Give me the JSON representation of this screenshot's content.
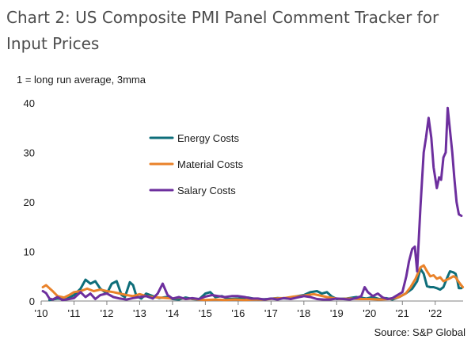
{
  "page": {
    "title": "Chart 2: US Composite PMI Panel Comment Tracker for\nInput Prices",
    "ylabel": "1 = long run average, 3mma",
    "source": "Source: S&P Global"
  },
  "colors": {
    "energy": "#0e6e7a",
    "material": "#e9822a",
    "salary": "#6d2f9e",
    "axis": "#808080"
  },
  "chart_data": {
    "type": "line",
    "title": "Chart 2: US Composite PMI Panel Comment Tracker for Input Prices",
    "xlabel": "",
    "ylabel": "1 = long run average, 3mma",
    "xlim": [
      2010.0,
      2022.85
    ],
    "ylim": [
      0,
      40
    ],
    "yticks": [
      0,
      10,
      20,
      30,
      40
    ],
    "xticks": [
      {
        "value": 2010,
        "label": "'10"
      },
      {
        "value": 2011,
        "label": "'11"
      },
      {
        "value": 2012,
        "label": "'12"
      },
      {
        "value": 2013,
        "label": "'13"
      },
      {
        "value": 2014,
        "label": "'14"
      },
      {
        "value": 2015,
        "label": "'15"
      },
      {
        "value": 2016,
        "label": "'16"
      },
      {
        "value": 2017,
        "label": "'17"
      },
      {
        "value": 2018,
        "label": "'18"
      },
      {
        "value": 2019,
        "label": "'19"
      },
      {
        "value": 2020,
        "label": "'20"
      },
      {
        "value": 2021,
        "label": "'21"
      },
      {
        "value": 2022,
        "label": "'22"
      }
    ],
    "legend_position": "upper-left",
    "series": [
      {
        "key": "energy",
        "name": "Energy Costs",
        "points": [
          [
            2010.25,
            0.2
          ],
          [
            2010.5,
            0.5
          ],
          [
            2010.75,
            0.3
          ],
          [
            2011.0,
            1.2
          ],
          [
            2011.2,
            2.5
          ],
          [
            2011.35,
            4.3
          ],
          [
            2011.5,
            3.5
          ],
          [
            2011.65,
            4.0
          ],
          [
            2011.8,
            2.5
          ],
          [
            2012.0,
            1.5
          ],
          [
            2012.15,
            3.5
          ],
          [
            2012.3,
            4.0
          ],
          [
            2012.45,
            1.2
          ],
          [
            2012.55,
            0.8
          ],
          [
            2012.7,
            3.8
          ],
          [
            2012.8,
            3.2
          ],
          [
            2012.9,
            1.0
          ],
          [
            2013.05,
            0.5
          ],
          [
            2013.2,
            1.5
          ],
          [
            2013.4,
            1.0
          ],
          [
            2013.6,
            0.6
          ],
          [
            2013.8,
            0.8
          ],
          [
            2014.0,
            0.4
          ],
          [
            2014.2,
            0.3
          ],
          [
            2014.4,
            0.7
          ],
          [
            2014.6,
            0.4
          ],
          [
            2014.8,
            0.3
          ],
          [
            2015.0,
            1.5
          ],
          [
            2015.15,
            1.8
          ],
          [
            2015.3,
            0.8
          ],
          [
            2015.5,
            1.0
          ],
          [
            2015.7,
            0.4
          ],
          [
            2016.0,
            0.5
          ],
          [
            2016.3,
            0.7
          ],
          [
            2016.6,
            0.3
          ],
          [
            2016.9,
            0.4
          ],
          [
            2017.2,
            0.6
          ],
          [
            2017.5,
            0.5
          ],
          [
            2017.8,
            1.0
          ],
          [
            2018.0,
            1.2
          ],
          [
            2018.2,
            1.8
          ],
          [
            2018.4,
            2.0
          ],
          [
            2018.55,
            1.5
          ],
          [
            2018.7,
            1.8
          ],
          [
            2018.85,
            0.9
          ],
          [
            2019.0,
            0.4
          ],
          [
            2019.3,
            0.5
          ],
          [
            2019.6,
            0.8
          ],
          [
            2019.9,
            0.5
          ],
          [
            2020.1,
            0.8
          ],
          [
            2020.3,
            0.4
          ],
          [
            2020.5,
            0.6
          ],
          [
            2020.7,
            0.3
          ],
          [
            2020.9,
            0.8
          ],
          [
            2021.1,
            1.5
          ],
          [
            2021.3,
            2.5
          ],
          [
            2021.45,
            4.0
          ],
          [
            2021.55,
            6.5
          ],
          [
            2021.65,
            5.5
          ],
          [
            2021.75,
            3.0
          ],
          [
            2021.85,
            2.8
          ],
          [
            2021.95,
            2.8
          ],
          [
            2022.05,
            2.6
          ],
          [
            2022.15,
            2.3
          ],
          [
            2022.25,
            2.8
          ],
          [
            2022.35,
            4.5
          ],
          [
            2022.45,
            6.0
          ],
          [
            2022.55,
            5.8
          ],
          [
            2022.62,
            5.5
          ],
          [
            2022.68,
            4.0
          ],
          [
            2022.72,
            2.6
          ],
          [
            2022.8,
            2.6
          ]
        ]
      },
      {
        "key": "material",
        "name": "Material Costs",
        "points": [
          [
            2010.05,
            2.8
          ],
          [
            2010.15,
            3.2
          ],
          [
            2010.25,
            2.6
          ],
          [
            2010.35,
            2.0
          ],
          [
            2010.5,
            1.0
          ],
          [
            2010.7,
            0.7
          ],
          [
            2010.85,
            1.2
          ],
          [
            2011.0,
            1.8
          ],
          [
            2011.2,
            2.0
          ],
          [
            2011.4,
            2.5
          ],
          [
            2011.6,
            2.0
          ],
          [
            2011.8,
            2.3
          ],
          [
            2012.0,
            2.0
          ],
          [
            2012.2,
            1.8
          ],
          [
            2012.4,
            1.5
          ],
          [
            2012.6,
            1.2
          ],
          [
            2012.8,
            1.0
          ],
          [
            2013.0,
            1.4
          ],
          [
            2013.2,
            1.0
          ],
          [
            2013.4,
            0.8
          ],
          [
            2013.6,
            0.7
          ],
          [
            2013.8,
            0.6
          ],
          [
            2014.0,
            0.5
          ],
          [
            2014.2,
            0.7
          ],
          [
            2014.4,
            0.4
          ],
          [
            2014.6,
            0.5
          ],
          [
            2014.8,
            0.3
          ],
          [
            2015.0,
            0.2
          ],
          [
            2015.3,
            0.3
          ],
          [
            2015.6,
            0.2
          ],
          [
            2015.9,
            0.3
          ],
          [
            2016.2,
            0.2
          ],
          [
            2016.5,
            0.3
          ],
          [
            2016.8,
            0.3
          ],
          [
            2017.1,
            0.5
          ],
          [
            2017.4,
            0.6
          ],
          [
            2017.7,
            0.9
          ],
          [
            2017.9,
            1.0
          ],
          [
            2018.1,
            1.2
          ],
          [
            2018.3,
            1.4
          ],
          [
            2018.5,
            1.1
          ],
          [
            2018.7,
            0.8
          ],
          [
            2018.9,
            0.6
          ],
          [
            2019.1,
            0.4
          ],
          [
            2019.4,
            0.5
          ],
          [
            2019.7,
            0.4
          ],
          [
            2020.0,
            0.4
          ],
          [
            2020.3,
            0.3
          ],
          [
            2020.6,
            0.4
          ],
          [
            2020.9,
            0.8
          ],
          [
            2021.1,
            1.5
          ],
          [
            2021.25,
            2.8
          ],
          [
            2021.4,
            4.5
          ],
          [
            2021.55,
            6.8
          ],
          [
            2021.65,
            7.2
          ],
          [
            2021.75,
            6.0
          ],
          [
            2021.85,
            5.0
          ],
          [
            2021.95,
            5.2
          ],
          [
            2022.05,
            4.5
          ],
          [
            2022.15,
            4.8
          ],
          [
            2022.25,
            4.0
          ],
          [
            2022.35,
            4.3
          ],
          [
            2022.45,
            4.6
          ],
          [
            2022.55,
            5.0
          ],
          [
            2022.62,
            4.8
          ],
          [
            2022.7,
            4.0
          ],
          [
            2022.78,
            3.3
          ],
          [
            2022.84,
            2.8
          ]
        ]
      },
      {
        "key": "salary",
        "name": "Salary Costs",
        "points": [
          [
            2010.05,
            2.0
          ],
          [
            2010.15,
            1.6
          ],
          [
            2010.25,
            0.5
          ],
          [
            2010.35,
            0.3
          ],
          [
            2010.5,
            0.8
          ],
          [
            2010.65,
            0.2
          ],
          [
            2010.85,
            0.4
          ],
          [
            2011.0,
            0.6
          ],
          [
            2011.2,
            1.8
          ],
          [
            2011.35,
            0.8
          ],
          [
            2011.5,
            1.5
          ],
          [
            2011.65,
            0.4
          ],
          [
            2011.8,
            1.2
          ],
          [
            2012.0,
            1.5
          ],
          [
            2012.2,
            0.8
          ],
          [
            2012.4,
            0.5
          ],
          [
            2012.6,
            0.3
          ],
          [
            2012.8,
            0.6
          ],
          [
            2013.0,
            0.8
          ],
          [
            2013.2,
            1.0
          ],
          [
            2013.4,
            0.5
          ],
          [
            2013.55,
            1.5
          ],
          [
            2013.7,
            3.5
          ],
          [
            2013.85,
            1.2
          ],
          [
            2014.0,
            0.5
          ],
          [
            2014.2,
            0.8
          ],
          [
            2014.4,
            0.4
          ],
          [
            2014.6,
            0.6
          ],
          [
            2014.8,
            0.4
          ],
          [
            2015.0,
            0.9
          ],
          [
            2015.2,
            1.2
          ],
          [
            2015.4,
            1.0
          ],
          [
            2015.6,
            0.8
          ],
          [
            2015.8,
            1.0
          ],
          [
            2016.0,
            1.0
          ],
          [
            2016.2,
            0.8
          ],
          [
            2016.4,
            0.5
          ],
          [
            2016.6,
            0.5
          ],
          [
            2016.8,
            0.3
          ],
          [
            2017.0,
            0.5
          ],
          [
            2017.2,
            0.3
          ],
          [
            2017.4,
            0.6
          ],
          [
            2017.6,
            0.4
          ],
          [
            2017.8,
            0.7
          ],
          [
            2018.0,
            1.0
          ],
          [
            2018.2,
            0.8
          ],
          [
            2018.4,
            0.4
          ],
          [
            2018.6,
            0.3
          ],
          [
            2018.8,
            0.3
          ],
          [
            2019.0,
            0.5
          ],
          [
            2019.2,
            0.4
          ],
          [
            2019.4,
            0.3
          ],
          [
            2019.6,
            0.6
          ],
          [
            2019.75,
            1.0
          ],
          [
            2019.85,
            2.8
          ],
          [
            2019.95,
            1.8
          ],
          [
            2020.1,
            1.0
          ],
          [
            2020.25,
            1.5
          ],
          [
            2020.4,
            0.7
          ],
          [
            2020.55,
            0.4
          ],
          [
            2020.7,
            0.6
          ],
          [
            2020.85,
            1.2
          ],
          [
            2021.0,
            1.8
          ],
          [
            2021.12,
            5.0
          ],
          [
            2021.2,
            8.0
          ],
          [
            2021.3,
            10.5
          ],
          [
            2021.38,
            11.0
          ],
          [
            2021.45,
            6.0
          ],
          [
            2021.55,
            19.0
          ],
          [
            2021.65,
            30.0
          ],
          [
            2021.72,
            33.0
          ],
          [
            2021.8,
            37.0
          ],
          [
            2021.88,
            33.0
          ],
          [
            2021.95,
            27.0
          ],
          [
            2022.05,
            22.8
          ],
          [
            2022.12,
            25.0
          ],
          [
            2022.18,
            24.5
          ],
          [
            2022.25,
            29.0
          ],
          [
            2022.32,
            30.0
          ],
          [
            2022.38,
            39.0
          ],
          [
            2022.45,
            34.5
          ],
          [
            2022.52,
            30.0
          ],
          [
            2022.58,
            25.0
          ],
          [
            2022.65,
            20.0
          ],
          [
            2022.72,
            17.5
          ],
          [
            2022.8,
            17.2
          ]
        ]
      }
    ]
  }
}
